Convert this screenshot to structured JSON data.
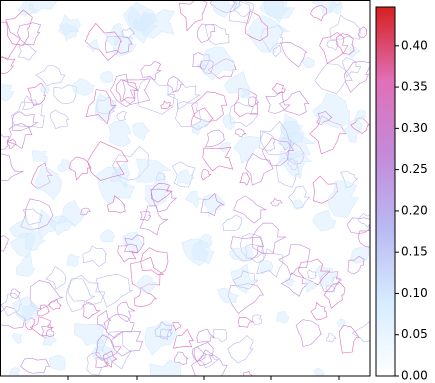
{
  "chart_data": {
    "type": "contour",
    "colorbar": {
      "lim": [
        0,
        0.447
      ],
      "ticks": [
        {
          "value": 0,
          "label": "0.00"
        },
        {
          "value": 0.05,
          "label": "0.05"
        },
        {
          "value": 0.1,
          "label": "0.10"
        },
        {
          "value": 0.15,
          "label": "0.15"
        },
        {
          "value": 0.2,
          "label": "0.20"
        },
        {
          "value": 0.25,
          "label": "0.25"
        },
        {
          "value": 0.3,
          "label": "0.30"
        },
        {
          "value": 0.35,
          "label": "0.35"
        },
        {
          "value": 0.4,
          "label": "0.40"
        }
      ],
      "colormap": [
        "#ffffff",
        "#d6ecff",
        "#b9b9f2",
        "#c48ad8",
        "#e070b8",
        "#d62020"
      ]
    }
  }
}
